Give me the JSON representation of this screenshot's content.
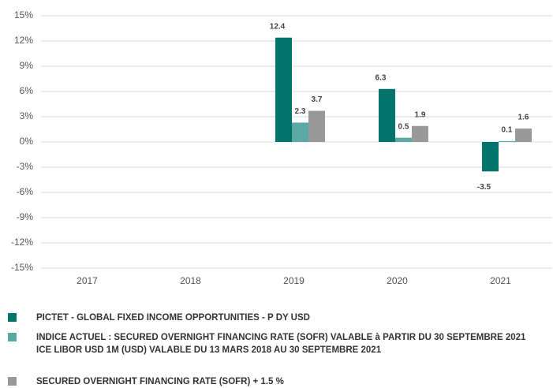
{
  "chart_data": {
    "type": "bar",
    "categories": [
      "2017",
      "2018",
      "2019",
      "2020",
      "2021"
    ],
    "series": [
      {
        "name": "PICTET - GLOBAL FIXED INCOME OPPORTUNITIES - P DY USD",
        "color": "#00736b",
        "values": [
          null,
          null,
          12.4,
          6.3,
          -3.5
        ]
      },
      {
        "name": "INDICE ACTUEL : SECURED OVERNIGHT FINANCING RATE (SOFR) VALABLE à PARTIR DU 30 SEPTEMBRE 2021\nICE LIBOR USD 1M (USD) VALABLE DU 13 MARS 2018 AU 30 SEPTEMBRE 2021",
        "color": "#5ba9a5",
        "values": [
          null,
          null,
          2.3,
          0.5,
          0.1
        ]
      },
      {
        "name": "SECURED OVERNIGHT FINANCING RATE (SOFR) + 1.5 %",
        "color": "#999999",
        "values": [
          null,
          null,
          3.7,
          1.9,
          1.6
        ]
      }
    ],
    "ylim": [
      -15,
      15
    ],
    "yticks": [
      {
        "value": -15,
        "label": "-15%"
      },
      {
        "value": -12,
        "label": "-12%"
      },
      {
        "value": -9,
        "label": "-9%"
      },
      {
        "value": -6,
        "label": "-6%"
      },
      {
        "value": -3,
        "label": "-3%"
      },
      {
        "value": 0,
        "label": "0%"
      },
      {
        "value": 3,
        "label": "3%"
      },
      {
        "value": 6,
        "label": "6%"
      },
      {
        "value": 9,
        "label": "9%"
      },
      {
        "value": 12,
        "label": "12%"
      },
      {
        "value": 15,
        "label": "15%"
      }
    ],
    "grid": true
  }
}
